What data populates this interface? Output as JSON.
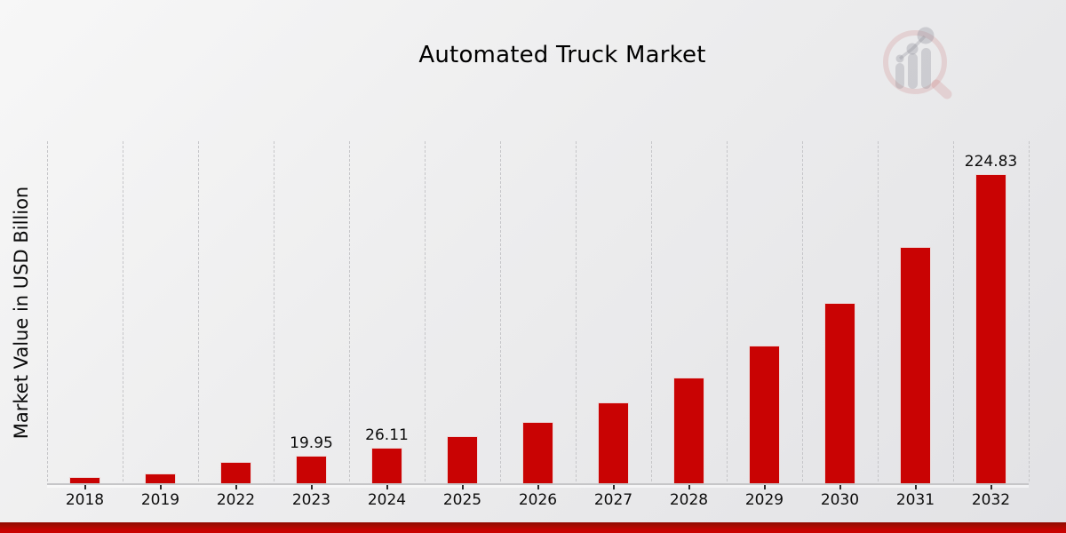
{
  "header": {
    "title": "Automated Truck Market",
    "logo_icon": "magnifier-bar-chart-watermark-icon"
  },
  "chart_data": {
    "type": "bar",
    "title": "Automated Truck Market",
    "xlabel": "",
    "ylabel": "Market Value in USD Billion",
    "categories": [
      "2018",
      "2019",
      "2022",
      "2023",
      "2024",
      "2025",
      "2026",
      "2027",
      "2028",
      "2029",
      "2030",
      "2031",
      "2032"
    ],
    "values": [
      4.8,
      6.8,
      15.2,
      19.95,
      26.11,
      34.2,
      44.7,
      58.6,
      76.7,
      100.4,
      131.4,
      172.0,
      224.83
    ],
    "data_labels": [
      "",
      "",
      "",
      "19.95",
      "26.11",
      "",
      "",
      "",
      "",
      "",
      "",
      "",
      "224.83"
    ],
    "ylim": [
      0,
      250
    ],
    "grid": "vertical-dashed",
    "legend": "none",
    "bar_color": "#c90303",
    "grid_color": "#c6c6c9",
    "label_color": "#0d0d0d"
  },
  "footer": {
    "band_colors": [
      "#8f0901",
      "#ca0201"
    ]
  }
}
